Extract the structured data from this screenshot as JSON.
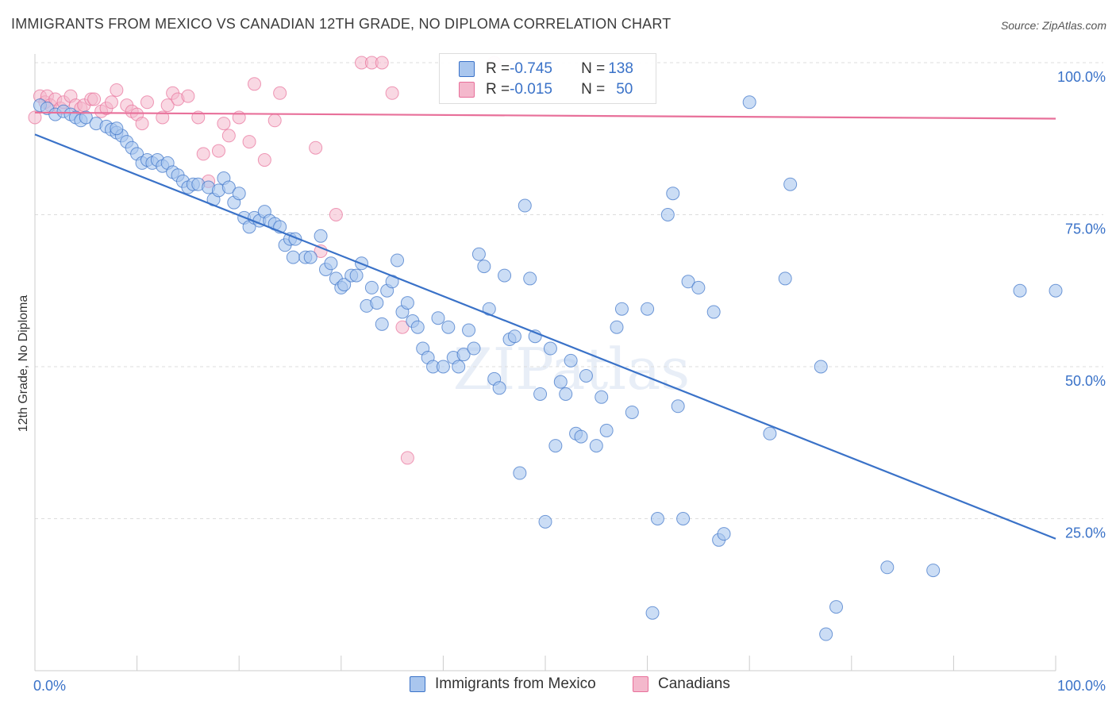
{
  "title": "IMMIGRANTS FROM MEXICO VS CANADIAN 12TH GRADE, NO DIPLOMA CORRELATION CHART",
  "source": "Source: ZipAtlas.com",
  "watermark": "ZIPatlas",
  "colors": {
    "blue": "#3a72c8",
    "blue_fill": "#a9c6ee",
    "pink": "#e8709a",
    "pink_fill": "#f4b8cc",
    "grid": "#dddddd"
  },
  "legend": {
    "rows": [
      {
        "r_label": "R = ",
        "r_value": "-0.745",
        "n_label": "N = ",
        "n_value": "138"
      },
      {
        "r_label": "R = ",
        "r_value": "-0.015",
        "n_label": "N = ",
        "n_value": "50"
      }
    ]
  },
  "bottom_legend": {
    "blue_label": "Immigrants from Mexico",
    "pink_label": "Canadians"
  },
  "chart_data": {
    "type": "scatter",
    "title": "IMMIGRANTS FROM MEXICO VS CANADIAN 12TH GRADE, NO DIPLOMA CORRELATION CHART",
    "xlabel": "",
    "ylabel": "12th Grade, No Diploma",
    "xlim": [
      0,
      100
    ],
    "ylim": [
      0,
      100
    ],
    "x_tick_labels": [
      "0.0%",
      "100.0%"
    ],
    "y_tick_labels": [
      "100.0%",
      "75.0%",
      "50.0%",
      "25.0%"
    ],
    "grid": true,
    "legend_position": "top-center",
    "series": [
      {
        "name": "Immigrants from Mexico",
        "r": -0.745,
        "n": 138,
        "trend": [
          [
            0,
            88.2
          ],
          [
            100,
            21.7
          ]
        ],
        "points": [
          [
            0.5,
            93
          ],
          [
            1.2,
            92.5
          ],
          [
            2,
            91.5
          ],
          [
            2.8,
            92
          ],
          [
            3.5,
            91.5
          ],
          [
            4,
            91
          ],
          [
            4.5,
            90.5
          ],
          [
            5,
            91
          ],
          [
            6,
            90
          ],
          [
            7,
            89.5
          ],
          [
            7.5,
            89
          ],
          [
            8,
            88.5
          ],
          [
            8.5,
            88
          ],
          [
            8,
            89.2
          ],
          [
            9,
            87
          ],
          [
            9.5,
            86
          ],
          [
            10,
            85
          ],
          [
            10.5,
            83.5
          ],
          [
            11,
            84
          ],
          [
            11.5,
            83.5
          ],
          [
            12,
            84
          ],
          [
            12.5,
            83
          ],
          [
            13,
            83.5
          ],
          [
            13.5,
            82
          ],
          [
            14,
            81.5
          ],
          [
            14.5,
            80.5
          ],
          [
            15,
            79.5
          ],
          [
            15.5,
            80
          ],
          [
            16,
            80
          ],
          [
            17,
            79.5
          ],
          [
            17.5,
            77.5
          ],
          [
            18,
            79
          ],
          [
            18.5,
            81
          ],
          [
            19,
            79.5
          ],
          [
            19.5,
            77
          ],
          [
            20,
            78.5
          ],
          [
            20.5,
            74.5
          ],
          [
            21,
            73
          ],
          [
            21.5,
            74.5
          ],
          [
            22,
            74
          ],
          [
            22.5,
            75.5
          ],
          [
            23,
            74
          ],
          [
            23.5,
            73.5
          ],
          [
            24,
            73
          ],
          [
            24.5,
            70
          ],
          [
            25,
            71
          ],
          [
            25.3,
            68
          ],
          [
            25.5,
            71
          ],
          [
            26.5,
            68
          ],
          [
            27,
            68
          ],
          [
            28,
            71.5
          ],
          [
            28.5,
            66
          ],
          [
            29,
            67
          ],
          [
            29.5,
            64.5
          ],
          [
            30,
            63
          ],
          [
            30.3,
            63.5
          ],
          [
            31,
            65
          ],
          [
            31.5,
            65
          ],
          [
            32,
            67
          ],
          [
            32.5,
            60
          ],
          [
            33,
            63
          ],
          [
            33.5,
            60.5
          ],
          [
            34,
            57
          ],
          [
            34.5,
            62.5
          ],
          [
            35,
            64
          ],
          [
            35.5,
            67.5
          ],
          [
            36,
            59
          ],
          [
            36.5,
            60.5
          ],
          [
            37,
            57.5
          ],
          [
            37.5,
            56.5
          ],
          [
            38,
            53
          ],
          [
            38.5,
            51.5
          ],
          [
            39,
            50
          ],
          [
            39.5,
            58
          ],
          [
            40,
            50
          ],
          [
            40.5,
            56.5
          ],
          [
            41,
            51.5
          ],
          [
            41.5,
            50
          ],
          [
            42,
            52
          ],
          [
            42.5,
            56
          ],
          [
            43,
            53
          ],
          [
            43.5,
            68.5
          ],
          [
            44,
            66.5
          ],
          [
            44.5,
            59.5
          ],
          [
            45,
            48
          ],
          [
            45.5,
            46.5
          ],
          [
            46,
            65
          ],
          [
            46.5,
            54.5
          ],
          [
            47,
            55
          ],
          [
            47.5,
            32.5
          ],
          [
            48,
            76.5
          ],
          [
            48.5,
            64.5
          ],
          [
            49,
            55
          ],
          [
            49.5,
            45.5
          ],
          [
            50,
            24.5
          ],
          [
            50.5,
            53
          ],
          [
            51,
            37
          ],
          [
            51.5,
            47.5
          ],
          [
            52,
            45.5
          ],
          [
            52.5,
            51
          ],
          [
            53,
            39
          ],
          [
            53.5,
            38.5
          ],
          [
            54,
            48.5
          ],
          [
            55,
            37
          ],
          [
            55.5,
            45
          ],
          [
            56,
            39.5
          ],
          [
            57,
            56.5
          ],
          [
            57.5,
            59.5
          ],
          [
            58.5,
            42.5
          ],
          [
            60,
            59.5
          ],
          [
            60.5,
            9.5
          ],
          [
            61,
            25
          ],
          [
            62,
            75
          ],
          [
            62.5,
            78.5
          ],
          [
            63,
            43.5
          ],
          [
            63.5,
            25
          ],
          [
            64,
            64
          ],
          [
            65,
            63
          ],
          [
            66.5,
            59
          ],
          [
            67,
            21.5
          ],
          [
            67.5,
            22.5
          ],
          [
            70,
            93.5
          ],
          [
            72,
            39
          ],
          [
            73.5,
            64.5
          ],
          [
            74,
            80
          ],
          [
            77.5,
            6
          ],
          [
            77,
            50
          ],
          [
            78.5,
            10.5
          ],
          [
            83.5,
            17
          ],
          [
            88,
            16.5
          ],
          [
            96.5,
            62.5
          ],
          [
            100,
            62.5
          ]
        ]
      },
      {
        "name": "Canadians",
        "r": -0.015,
        "n": 50,
        "trend": [
          [
            0,
            91.8
          ],
          [
            100,
            90.8
          ]
        ],
        "points": [
          [
            0,
            91
          ],
          [
            0.5,
            94.5
          ],
          [
            1,
            93.5
          ],
          [
            1.2,
            94.5
          ],
          [
            1.5,
            93
          ],
          [
            2,
            94
          ],
          [
            2.5,
            92.5
          ],
          [
            2.8,
            93.5
          ],
          [
            3.5,
            94.5
          ],
          [
            4,
            93
          ],
          [
            4.5,
            92.5
          ],
          [
            4.8,
            93
          ],
          [
            5.5,
            94
          ],
          [
            5.8,
            94
          ],
          [
            6.5,
            92
          ],
          [
            7,
            92.5
          ],
          [
            7.5,
            93.5
          ],
          [
            8,
            95.5
          ],
          [
            9,
            93
          ],
          [
            9.5,
            92
          ],
          [
            10,
            91.5
          ],
          [
            10.5,
            90
          ],
          [
            11,
            93.5
          ],
          [
            12.5,
            91
          ],
          [
            13,
            93
          ],
          [
            13.5,
            95
          ],
          [
            14,
            94
          ],
          [
            15,
            94.5
          ],
          [
            16,
            91
          ],
          [
            16.5,
            85
          ],
          [
            17,
            80.5
          ],
          [
            18,
            85.5
          ],
          [
            18.5,
            90
          ],
          [
            19,
            88
          ],
          [
            20,
            91
          ],
          [
            21,
            87
          ],
          [
            21.5,
            96.5
          ],
          [
            22.5,
            84
          ],
          [
            23.5,
            90.5
          ],
          [
            24,
            95
          ],
          [
            27.5,
            86
          ],
          [
            28,
            69
          ],
          [
            29.5,
            75
          ],
          [
            32,
            100
          ],
          [
            33,
            100
          ],
          [
            34,
            100
          ],
          [
            35,
            95
          ],
          [
            36,
            56.5
          ],
          [
            36.5,
            35
          ],
          [
            45,
            100
          ]
        ]
      }
    ]
  }
}
